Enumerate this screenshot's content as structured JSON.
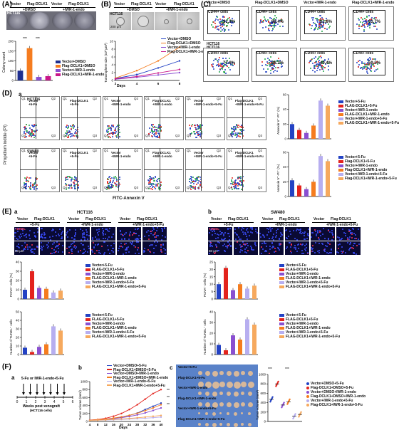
{
  "figure": {
    "panel_labels": {
      "A": "(A)",
      "B": "(B)",
      "C": "(C)",
      "D": "(D)",
      "E": "(E)",
      "F": "(F)"
    },
    "sub_labels": {
      "a": "a",
      "b": "b",
      "c": "c"
    }
  },
  "A": {
    "cell_line": "HCT116",
    "header_top": [
      "Vector",
      "Flag-DCLK1",
      "Vector",
      "Flag-DCLK1"
    ],
    "header_bottom": [
      "+DMSO",
      "+IWR-1-endo"
    ],
    "ylabel": "Colony count",
    "sig": [
      "***",
      "***"
    ],
    "legend": [
      "Vector+DMSO",
      "Flag-DCLK1+DMSO",
      "Vector+IWR-1-endo",
      "Flag-DCLK1+IWR-1-endo"
    ]
  },
  "B": {
    "cell_line": "HCT116",
    "header_top": [
      "Vector",
      "Flag-DCLK1",
      "Vector",
      "Flag-DCLK1"
    ],
    "header_bottom": [
      "+DMSO",
      "+IWR-1-endo"
    ],
    "scale_bar": "200 μm",
    "ylabel": "Tumorsphere size (10³ μm²)",
    "xlabel": "Days",
    "sig": "*",
    "legend": [
      "Vector+DMSO",
      "Flag-DCLK1+DMSO",
      "Vector+IWR-1-endo",
      "Flag-DCLK1+IWR-1-endo"
    ]
  },
  "C": {
    "cell_line": "HCT116",
    "panels": [
      {
        "title": "Vector+DMSO",
        "gate": "CD44+ cells",
        "pct": "91.3%"
      },
      {
        "title": "Flag-DCLK1+DMSO",
        "gate": "CD44+ cells",
        "pct": "99.4%"
      },
      {
        "title": "Vector+IWR-1-endo",
        "gate": "CD44+ cells",
        "pct": "51.8%"
      },
      {
        "title": "Flag-DCLK1+IWR-1-endo",
        "gate": "CD44+ cells",
        "pct": "63.7%"
      },
      {
        "title": "",
        "gate": "CD44+ cells",
        "pct": "77.8%"
      },
      {
        "title": "",
        "gate": "CD44+ cells",
        "pct": "88.2%"
      },
      {
        "title": "",
        "gate": "CD44+ cells",
        "pct": "49.4%"
      },
      {
        "title": "",
        "gate": "CD44+ cells",
        "pct": "59.5%"
      }
    ],
    "second_row_cell_line": "HCT116"
  },
  "D": {
    "rows": [
      {
        "cell_line": "HCT116",
        "panels": [
          {
            "title": "Vector\n+5-Fu"
          },
          {
            "title": "Flag-DCLK1\n+5-Fu"
          },
          {
            "title": "Vector\n+IWR-1-endo"
          },
          {
            "title": "Flag-DCLK1\n+IWR-1-endo"
          },
          {
            "title": "Vector\n+IWR-1-endo+5-Fu"
          },
          {
            "title": "Flag-DCLK1\n+IWR-1-endo+5-Fu"
          }
        ]
      },
      {
        "cell_line": "SW480",
        "panels": [
          {
            "title": "Vector\n+5-Fu"
          },
          {
            "title": "Flag-DCLK1\n+5-Fu"
          },
          {
            "title": "Vector\n+IWR-1-endo"
          },
          {
            "title": "Flag-DCLK1\n+IWR-1-endo"
          },
          {
            "title": "Vector\n+IWR-1-endo+5-Fu"
          },
          {
            "title": "Flag-DCLK1\n+IWR-1-endo+5-Fu"
          }
        ]
      }
    ],
    "quadrants": [
      "Q1",
      "Q2",
      "Q3",
      "Q4"
    ],
    "ylabel": "Propidium iodide (PI)",
    "xlabel": "FITC-Annexin V",
    "bar_ylabel_top": "Annexin V⁺-PI⁺ (%)",
    "bar_ylabel_bottom": "Annexin V⁺-PI⁺ (%)",
    "legend_top": [
      "Vector+5-Fu",
      "FLAG-DCLK1+5-Fu",
      "Vector+IWR-1-endo",
      "FLAG-DCLK1+IWR-1-endo",
      "Vector+IWR-1-endo+5-Fu",
      "FLAG-DCLK1+IWR-1-endo+5-Fu"
    ],
    "legend_bottom": [
      "Vector+5-Fu",
      "Flag-DCLK1+5-Fu",
      "Vector+IWR-1-endo",
      "Flag-DCLK1+IWR-1-endo",
      "Vector+IWR-1-endo+5-Fu",
      "Flag-DCLK1+IWR-1-endo+5-Fu"
    ]
  },
  "E": {
    "a": {
      "cell_line": "HCT116",
      "headers": [
        "Vector",
        "Flag-DCLK1",
        "Vector",
        "Flag-DCLK1",
        "Vector",
        "Flag-DCLK1"
      ],
      "subheaders": [
        "+5-Fu",
        "+IWR-1-endo",
        "+IWR-1-endo+5-Fu"
      ],
      "stain": "TUNEL",
      "scale": "50 μm",
      "legend_pcna": [
        "Vector+5-Fu",
        "FLAG-DCLK1+5-Fu",
        "Vector+IWR-1-endo",
        "FLAG-DCLK1+IWR-1-endo",
        "Vector+IWR-1-endo+5-Fu",
        "FLAG-DCLK1+IWR-1-endo+5-Fu"
      ],
      "legend_tunel": [
        "Vector+5-Fu",
        "FLAG-DCLK1+5-Fu",
        "Vector+IWR-1-endo",
        "FLAG-DCLK1+IWR-1-endo",
        "Vector+IWR-1-endo+5-Fu",
        "FLAG-DCLK1+IWR-1-endo+5-Fu"
      ],
      "ylabel_pcna": "PCNA⁺ cells (%)",
      "ylabel_tunel": "Number of TUNEL⁺ cells"
    },
    "b": {
      "cell_line": "SW480",
      "headers": [
        "Vector",
        "Flag-DCLK1",
        "Vector",
        "Flag-DCLK1",
        "Vector",
        "Flag-DCLK1"
      ],
      "subheaders": [
        "+5-Fu",
        "+IWR-1-endo",
        "+IWR-1-endo+5-Fu"
      ],
      "stain": "TUNEL",
      "scale": "50 μm",
      "legend_pcna": [
        "Vector+5-Fu",
        "FLAG-DCLK1+5-Fu",
        "Vector+IWR-1-endo",
        "FLAG-DCLK1+IWR-1-endo",
        "Vector+IWR-1-endo+5-Fu",
        "FLAG-DCLK1+IWR-1-endo+5-Fu"
      ],
      "legend_tunel": [
        "Vector+5-Fu",
        "FLAG-DCLK1+5-Fu",
        "Vector+IWR-1-endo",
        "FLAG-DCLK1+IWR-1-endo",
        "Vector+IWR-1-endo+5-Fu",
        "FLAG-DCLK1+IWR-1-endo+5-Fu"
      ],
      "ylabel_pcna": "PCNA⁺ cells (%)",
      "ylabel_tunel": "Number of TUNEL⁺ cells"
    }
  },
  "F": {
    "a": {
      "treatment": "5-Fu or IWR-1-endo+5-Fu",
      "xlabel": "Weeks post xenograft",
      "note": "(HCT116 cells)",
      "ticks": [
        "0",
        "1",
        "2",
        "3",
        "4",
        "5",
        "6"
      ]
    },
    "b": {
      "xlabel": "Days",
      "ylabel": "Tumor volume (mm³)",
      "sig": [
        "**",
        "**",
        "**"
      ],
      "legend": [
        "Vector+DMSO+5-Fu",
        "Flag-DCLK1+DMSO+5-Fu",
        "Vector+DMSO+IWR-1-endo",
        "Flag-DCLK1+DMSO+IWR-1-endo",
        "Vector+IWR-1-endo+5-Fu",
        "Flag-DCLK1+IWR-1-endo+5-Fu"
      ]
    },
    "c": {
      "rows": [
        "Vector+5-Fu",
        "Flag-DCLK1+5-Fu",
        "Vector+IWR-1-endo",
        "Flag-DCLK1+IWR-1-endo",
        "Vector+IWR-1-endo+5-Fu",
        "Flag-DCLK1+IWR-1-endo+5-Fu"
      ],
      "ylabel": "Tumor volume (mm³)",
      "sig": [
        "***",
        "***"
      ],
      "legend": [
        "Vector+DMSO+5-Fu",
        "Flag-DCLK1+DMSO+5-Fu",
        "Vector+DMSO+IWR-1-endo",
        "Flag-DCLK1+DMSO+IWR-1-endo",
        "Vector+IWR-1-endo+5-Fu",
        "Flag-DCLK1+IWR-1-endo+5-Fu"
      ]
    }
  },
  "colors": {
    "navy": "#1f2f8f",
    "orange": "#f57c1f",
    "purple": "#8a4fd1",
    "magenta": "#c9168a",
    "blue": "#2342c4",
    "red": "#e3231d",
    "lavender": "#b7aef0",
    "peach": "#f6a95e"
  },
  "chart_data": [
    {
      "type": "bar",
      "id": "A",
      "categories": [
        "Vector+DMSO",
        "Flag-DCLK1+DMSO",
        "Vector+IWR-1-endo",
        "Flag-DCLK1+IWR-1-endo"
      ],
      "values": [
        50,
        165,
        18,
        22
      ],
      "ylim": [
        0,
        200
      ],
      "yticks": [
        0,
        50,
        100,
        150,
        200
      ],
      "ylabel": "Colony count"
    },
    {
      "type": "line",
      "id": "B",
      "x": [
        2,
        4,
        6,
        8
      ],
      "xlabel": "Days",
      "ylabel": "Tumorsphere size (10³ μm²)",
      "ylim": [
        0,
        10
      ],
      "yticks": [
        0,
        2,
        4,
        6,
        8,
        10
      ],
      "series": [
        {
          "name": "Vector+DMSO",
          "values": [
            0.5,
            1.5,
            3.2,
            5.0
          ]
        },
        {
          "name": "Flag-DCLK1+DMSO",
          "values": [
            0.6,
            2.5,
            5.0,
            8.5
          ]
        },
        {
          "name": "Vector+IWR-1-endo",
          "values": [
            0.3,
            0.8,
            1.4,
            2.0
          ]
        },
        {
          "name": "Flag-DCLK1+IWR-1-endo",
          "values": [
            0.4,
            1.0,
            1.9,
            2.8
          ]
        }
      ]
    },
    {
      "type": "bar",
      "id": "D-top",
      "categories": [
        "Vector+5-Fu",
        "FLAG-DCLK1+5-Fu",
        "Vector+IWR-1-endo",
        "FLAG-DCLK1+IWR-1-endo",
        "Vector+IWR-1-endo+5-Fu",
        "FLAG-DCLK1+IWR-1-endo+5-Fu"
      ],
      "values": [
        20,
        12,
        8,
        18,
        52,
        45
      ],
      "ylim": [
        0,
        60
      ],
      "yticks": [
        0,
        20,
        40,
        60
      ]
    },
    {
      "type": "bar",
      "id": "D-bottom",
      "categories": [
        "Vector+5-Fu",
        "Flag-DCLK1+5-Fu",
        "Vector+IWR-1-endo",
        "Flag-DCLK1+IWR-1-endo",
        "Vector+IWR-1-endo+5-Fu",
        "Flag-DCLK1+IWR-1-endo+5-Fu"
      ],
      "values": [
        22,
        15,
        10,
        20,
        55,
        48
      ],
      "ylim": [
        0,
        60
      ],
      "yticks": [
        0,
        20,
        40,
        60
      ]
    },
    {
      "type": "bar",
      "id": "Ea-pcna",
      "values": [
        10,
        30,
        12,
        11,
        7,
        9
      ],
      "ylim": [
        0,
        40
      ],
      "yticks": [
        0,
        10,
        20,
        30,
        40
      ]
    },
    {
      "type": "bar",
      "id": "Ea-tunel",
      "values": [
        8,
        3,
        9,
        12,
        33,
        28
      ],
      "ylim": [
        0,
        50
      ],
      "yticks": [
        0,
        10,
        20,
        30,
        40,
        50
      ]
    },
    {
      "type": "bar",
      "id": "Eb-pcna",
      "values": [
        10,
        21,
        6,
        10,
        7,
        9
      ],
      "ylim": [
        0,
        25
      ],
      "yticks": [
        0,
        5,
        10,
        15,
        20,
        25
      ]
    },
    {
      "type": "bar",
      "id": "Eb-tunel",
      "values": [
        9,
        4,
        18,
        14,
        33,
        28
      ],
      "ylim": [
        0,
        40
      ],
      "yticks": [
        0,
        10,
        20,
        30,
        40
      ]
    },
    {
      "type": "line",
      "id": "Fb",
      "x": [
        4,
        8,
        12,
        16,
        20,
        24,
        28,
        32,
        36,
        40
      ],
      "xlabel": "Days",
      "ylabel": "Tumor volume (mm³)",
      "ylim": [
        0,
        1000
      ],
      "yticks": [
        0,
        200,
        400,
        600,
        800,
        1000
      ],
      "series": [
        {
          "name": "Vector+DMSO+5-Fu",
          "values": [
            30,
            40,
            55,
            80,
            110,
            150,
            210,
            300,
            380,
            460
          ]
        },
        {
          "name": "Flag-DCLK1+DMSO+5-Fu",
          "values": [
            35,
            50,
            80,
            130,
            200,
            300,
            420,
            560,
            700,
            800
          ]
        },
        {
          "name": "Vector+DMSO+IWR-1-endo",
          "values": [
            30,
            40,
            50,
            70,
            95,
            125,
            165,
            215,
            275,
            340
          ]
        },
        {
          "name": "Flag-DCLK1+DMSO+IWR-1-endo",
          "values": [
            30,
            45,
            60,
            85,
            115,
            155,
            205,
            270,
            340,
            420
          ]
        },
        {
          "name": "Vector+IWR-1-endo+5-Fu",
          "values": [
            25,
            30,
            35,
            42,
            50,
            60,
            70,
            82,
            95,
            110
          ]
        },
        {
          "name": "Flag-DCLK1+IWR-1-endo+5-Fu",
          "values": [
            25,
            32,
            40,
            50,
            62,
            76,
            92,
            110,
            130,
            150
          ]
        }
      ]
    },
    {
      "type": "scatter",
      "id": "Fc",
      "categories": [
        "Vector+DMSO+5-Fu",
        "Flag-DCLK1+DMSO+5-Fu",
        "Vector+DMSO+IWR-1-endo",
        "Flag-DCLK1+DMSO+IWR-1-endo",
        "Vector+IWR-1-endo+5-Fu",
        "Flag-DCLK1+IWR-1-endo+5-Fu"
      ],
      "values": [
        470,
        800,
        350,
        420,
        110,
        150
      ],
      "ylim": [
        0,
        1000
      ],
      "yticks": [
        0,
        200,
        400,
        600,
        800,
        1000
      ]
    }
  ]
}
